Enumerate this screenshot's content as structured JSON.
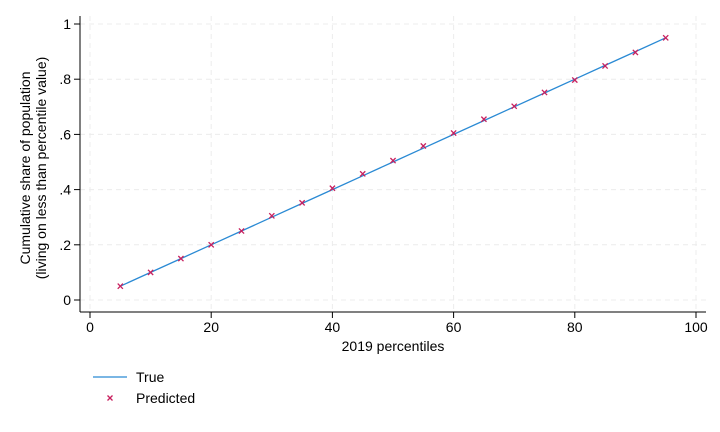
{
  "chart_data": {
    "type": "line",
    "xlabel": "2019 percentiles",
    "ylabel_lines": [
      "Cumulative share of population",
      "(living on less than percentile value)"
    ],
    "xlim": [
      0,
      100
    ],
    "ylim": [
      0,
      1
    ],
    "x_ticks": [
      {
        "value": 0,
        "label": "0"
      },
      {
        "value": 20,
        "label": "20"
      },
      {
        "value": 40,
        "label": "40"
      },
      {
        "value": 60,
        "label": "60"
      },
      {
        "value": 80,
        "label": "80"
      },
      {
        "value": 100,
        "label": "100"
      }
    ],
    "y_ticks": [
      {
        "value": 0,
        "label": "0"
      },
      {
        "value": 0.2,
        "label": ".2"
      },
      {
        "value": 0.4,
        "label": ".4"
      },
      {
        "value": 0.6,
        "label": ".6"
      },
      {
        "value": 0.8,
        "label": ".8"
      },
      {
        "value": 1,
        "label": "1"
      }
    ],
    "grid": true,
    "legend_position": "bottom-left",
    "series": [
      {
        "name": "True",
        "kind": "line",
        "color": "#2a8ad4",
        "x": [
          5,
          10,
          15,
          20,
          25,
          30,
          35,
          40,
          45,
          50,
          55,
          60,
          65,
          70,
          75,
          80,
          85,
          90,
          95
        ],
        "y": [
          0.05,
          0.1,
          0.15,
          0.2,
          0.25,
          0.3,
          0.35,
          0.4,
          0.45,
          0.5,
          0.55,
          0.6,
          0.65,
          0.7,
          0.75,
          0.8,
          0.85,
          0.9,
          0.95
        ]
      },
      {
        "name": "Predicted",
        "kind": "marker-x",
        "color": "#c8205e",
        "x": [
          5,
          10,
          15,
          20,
          25,
          30,
          35,
          40,
          45,
          50,
          55,
          60,
          65,
          70,
          75,
          80,
          85,
          90,
          95
        ],
        "y": [
          0.05,
          0.1,
          0.15,
          0.2,
          0.25,
          0.305,
          0.352,
          0.405,
          0.457,
          0.505,
          0.558,
          0.605,
          0.655,
          0.702,
          0.752,
          0.797,
          0.848,
          0.897,
          0.95
        ]
      }
    ]
  }
}
